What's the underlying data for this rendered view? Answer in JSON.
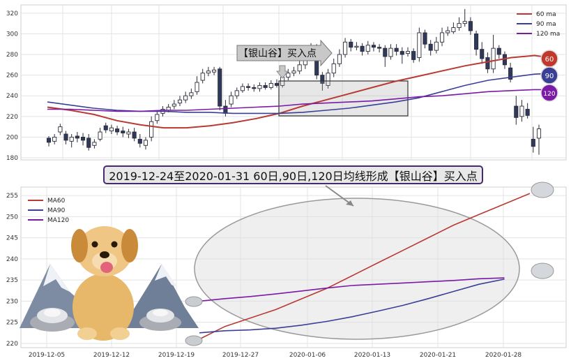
{
  "top_chart": {
    "type": "line",
    "annotation_arrow_label": "【银山谷】买入点",
    "legend": [
      "60 ma",
      "90 ma",
      "120 ma"
    ],
    "badges": [
      "60",
      "90",
      "120"
    ],
    "colors": {
      "ma60": "#b83a33",
      "ma90": "#3a3f96",
      "ma120": "#7a1aa6"
    },
    "yticks": [
      180,
      200,
      220,
      240,
      260,
      280,
      300,
      320
    ],
    "ylim": [
      178,
      328
    ],
    "ma60": [
      [
        0,
        229
      ],
      [
        10,
        226
      ],
      [
        20,
        222
      ],
      [
        30,
        216
      ],
      [
        40,
        212
      ],
      [
        50,
        209
      ],
      [
        60,
        209
      ],
      [
        70,
        211
      ],
      [
        80,
        214
      ],
      [
        90,
        218
      ],
      [
        100,
        223
      ],
      [
        110,
        230
      ],
      [
        120,
        236
      ],
      [
        130,
        242
      ],
      [
        140,
        248
      ],
      [
        150,
        254
      ],
      [
        160,
        259
      ],
      [
        170,
        264
      ],
      [
        180,
        269
      ],
      [
        190,
        273
      ],
      [
        200,
        277
      ],
      [
        210,
        279
      ],
      [
        220,
        276
      ]
    ],
    "ma90": [
      [
        0,
        234
      ],
      [
        10,
        231
      ],
      [
        20,
        228
      ],
      [
        30,
        226
      ],
      [
        40,
        225
      ],
      [
        50,
        225
      ],
      [
        60,
        224
      ],
      [
        70,
        224
      ],
      [
        80,
        223
      ],
      [
        90,
        223
      ],
      [
        100,
        223
      ],
      [
        110,
        224
      ],
      [
        120,
        226
      ],
      [
        130,
        228
      ],
      [
        140,
        231
      ],
      [
        150,
        234
      ],
      [
        160,
        238
      ],
      [
        170,
        244
      ],
      [
        180,
        250
      ],
      [
        190,
        255
      ],
      [
        200,
        258
      ],
      [
        210,
        261
      ],
      [
        220,
        262
      ]
    ],
    "ma120": [
      [
        0,
        227
      ],
      [
        10,
        227
      ],
      [
        20,
        226
      ],
      [
        30,
        225
      ],
      [
        40,
        225
      ],
      [
        50,
        226
      ],
      [
        60,
        226
      ],
      [
        70,
        227
      ],
      [
        80,
        228
      ],
      [
        90,
        229
      ],
      [
        100,
        230
      ],
      [
        110,
        232
      ],
      [
        120,
        233
      ],
      [
        130,
        234
      ],
      [
        140,
        235
      ],
      [
        150,
        237
      ],
      [
        160,
        239
      ],
      [
        170,
        240
      ],
      [
        180,
        242
      ],
      [
        190,
        244
      ],
      [
        200,
        245
      ],
      [
        210,
        246
      ],
      [
        220,
        246
      ]
    ],
    "candles": [
      [
        199,
        195,
        201,
        191
      ],
      [
        196,
        200,
        203,
        193
      ],
      [
        205,
        210,
        213,
        202
      ],
      [
        203,
        197,
        206,
        193
      ],
      [
        196,
        200,
        203,
        190
      ],
      [
        201,
        199,
        205,
        195
      ],
      [
        200,
        197,
        204,
        192
      ],
      [
        199,
        190,
        203,
        187
      ],
      [
        192,
        195,
        198,
        189
      ],
      [
        198,
        205,
        209,
        196
      ],
      [
        211,
        207,
        214,
        204
      ],
      [
        206,
        209,
        212,
        203
      ],
      [
        208,
        205,
        211,
        202
      ],
      [
        206,
        204,
        210,
        200
      ],
      [
        203,
        205,
        208,
        199
      ],
      [
        205,
        199,
        209,
        196
      ],
      [
        198,
        194,
        203,
        190
      ],
      [
        192,
        197,
        200,
        188
      ],
      [
        200,
        215,
        220,
        196
      ],
      [
        216,
        222,
        226,
        213
      ],
      [
        223,
        227,
        230,
        220
      ],
      [
        226,
        229,
        232,
        224
      ],
      [
        230,
        232,
        236,
        227
      ],
      [
        233,
        236,
        240,
        230
      ],
      [
        236,
        240,
        244,
        233
      ],
      [
        240,
        243,
        247,
        237
      ],
      [
        244,
        253,
        259,
        241
      ],
      [
        255,
        262,
        266,
        252
      ],
      [
        262,
        264,
        268,
        259
      ],
      [
        263,
        265,
        268,
        260
      ],
      [
        266,
        230,
        268,
        226
      ],
      [
        230,
        223,
        236,
        220
      ],
      [
        232,
        240,
        244,
        229
      ],
      [
        240,
        245,
        248,
        237
      ],
      [
        245,
        249,
        252,
        243
      ],
      [
        249,
        248,
        252,
        245
      ],
      [
        248,
        247,
        251,
        244
      ],
      [
        247,
        250,
        253,
        244
      ],
      [
        250,
        248,
        253,
        246
      ],
      [
        248,
        252,
        255,
        246
      ],
      [
        252,
        250,
        256,
        248
      ],
      [
        250,
        258,
        263,
        248
      ],
      [
        258,
        262,
        266,
        255
      ],
      [
        262,
        264,
        268,
        259
      ],
      [
        264,
        270,
        275,
        261
      ],
      [
        270,
        278,
        283,
        266
      ],
      [
        278,
        287,
        291,
        275
      ],
      [
        287,
        260,
        290,
        256
      ],
      [
        260,
        252,
        263,
        245
      ],
      [
        250,
        262,
        266,
        247
      ],
      [
        262,
        271,
        276,
        258
      ],
      [
        271,
        280,
        285,
        268
      ],
      [
        280,
        292,
        296,
        277
      ],
      [
        292,
        287,
        295,
        283
      ],
      [
        287,
        288,
        292,
        284
      ],
      [
        288,
        283,
        291,
        279
      ],
      [
        283,
        289,
        293,
        280
      ],
      [
        289,
        287,
        292,
        283
      ],
      [
        287,
        286,
        290,
        282
      ],
      [
        286,
        278,
        289,
        268
      ],
      [
        278,
        286,
        290,
        275
      ],
      [
        286,
        283,
        290,
        279
      ],
      [
        283,
        280,
        287,
        271
      ],
      [
        281,
        283,
        287,
        278
      ],
      [
        283,
        275,
        286,
        272
      ],
      [
        277,
        301,
        306,
        273
      ],
      [
        301,
        290,
        304,
        286
      ],
      [
        290,
        284,
        294,
        279
      ],
      [
        284,
        292,
        297,
        281
      ],
      [
        292,
        301,
        306,
        288
      ],
      [
        301,
        303,
        307,
        298
      ],
      [
        302,
        306,
        311,
        300
      ],
      [
        306,
        310,
        316,
        303
      ],
      [
        310,
        312,
        324,
        307
      ],
      [
        312,
        303,
        316,
        299
      ],
      [
        300,
        285,
        303,
        279
      ],
      [
        285,
        276,
        292,
        271
      ],
      [
        277,
        266,
        282,
        262
      ],
      [
        266,
        286,
        299,
        262
      ],
      [
        286,
        280,
        289,
        276
      ],
      [
        280,
        270,
        283,
        266
      ],
      [
        267,
        256,
        272,
        253
      ],
      [
        230,
        219,
        240,
        212
      ],
      [
        220,
        230,
        236,
        215
      ],
      [
        227,
        221,
        233,
        218
      ],
      [
        198,
        191,
        210,
        185
      ],
      [
        199,
        208,
        212,
        183
      ]
    ]
  },
  "banner_text": "2019-12-24至2020-01-31 60日,90日,120日均线形成【银山谷】买入点",
  "bottom_chart": {
    "type": "line",
    "legend": [
      "MA60",
      "MA90",
      "MA120"
    ],
    "colors": {
      "ma60": "#b83a33",
      "ma90": "#3a3f96",
      "ma120": "#7a1aa6"
    },
    "yticks": [
      220,
      225,
      230,
      235,
      240,
      245,
      250,
      255
    ],
    "ylim": [
      219,
      257
    ],
    "xticks": [
      "2019-12-05",
      "2019-12-12",
      "2019-12-19",
      "2019-12-27",
      "2020-01-06",
      "2020-01-13",
      "2020-01-21",
      "2020-01-28"
    ],
    "ma60": [
      [
        0,
        221
      ],
      [
        5,
        224
      ],
      [
        10,
        226
      ],
      [
        15,
        228
      ],
      [
        20,
        230.5
      ],
      [
        25,
        233
      ],
      [
        30,
        236
      ],
      [
        35,
        239
      ],
      [
        40,
        242
      ],
      [
        45,
        245
      ],
      [
        50,
        248
      ],
      [
        55,
        250.5
      ],
      [
        60,
        253
      ],
      [
        65,
        255.5
      ]
    ],
    "ma90": [
      [
        0,
        222.5
      ],
      [
        5,
        223
      ],
      [
        10,
        223.2
      ],
      [
        15,
        223.6
      ],
      [
        20,
        224.3
      ],
      [
        25,
        225.2
      ],
      [
        30,
        226.3
      ],
      [
        35,
        227.6
      ],
      [
        40,
        229
      ],
      [
        45,
        230.6
      ],
      [
        50,
        232.3
      ],
      [
        55,
        234
      ],
      [
        60,
        235.2
      ]
    ],
    "ma120": [
      [
        0,
        230
      ],
      [
        5,
        230.6
      ],
      [
        10,
        231.1
      ],
      [
        15,
        231.7
      ],
      [
        20,
        232.4
      ],
      [
        25,
        233.1
      ],
      [
        30,
        233.7
      ],
      [
        35,
        234.0
      ],
      [
        40,
        234.3
      ],
      [
        45,
        234.6
      ],
      [
        50,
        234.9
      ],
      [
        55,
        235.3
      ],
      [
        60,
        235.5
      ]
    ]
  }
}
